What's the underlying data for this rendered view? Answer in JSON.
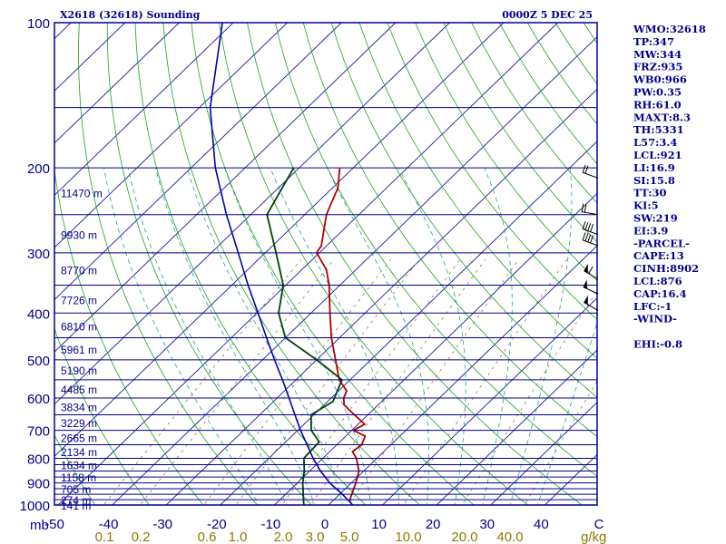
{
  "header": {
    "title": "X2618 (32618) Sounding",
    "time": "0000Z  5 DEC 25"
  },
  "colors": {
    "frame": "#00008b",
    "isobar": "#00008b",
    "isotherm": "#1a1aa0",
    "dry_adiabat": "#1fa01f",
    "moist_adiabat": "#22a0a0",
    "mixing_ratio": "#8a7a4a",
    "temperature": "#b00000",
    "dewpoint": "#004400",
    "parcel": "#0000aa",
    "text": "#00008b",
    "mixing_label": "#8a7a00",
    "wind": "#000000"
  },
  "chart_data": {
    "type": "skew-t",
    "pressure_axis": {
      "unit": "mb",
      "scale": "log",
      "range": [
        1000,
        100
      ],
      "ticks": [
        1000,
        900,
        800,
        700,
        600,
        500,
        400,
        300,
        200,
        100
      ]
    },
    "temperature_axis": {
      "unit": "C",
      "range": [
        -50,
        50
      ],
      "ticks": [
        -50,
        -40,
        -30,
        -20,
        -10,
        0,
        10,
        20,
        30,
        40
      ],
      "tick_labels": [
        "-50",
        "-40",
        "-30",
        "-20",
        "-10",
        "0",
        "10",
        "20",
        "30",
        "40"
      ],
      "unit_label": "C"
    },
    "mixing_ratio_axis": {
      "unit": "g/kg",
      "values": [
        0.1,
        0.2,
        0.6,
        1.0,
        2.0,
        3.0,
        5.0,
        10.0,
        20.0,
        40.0
      ],
      "labels": [
        "0.1",
        "0.2",
        "0.6",
        "1.0",
        "2.0",
        "3.0",
        "5.0",
        "10.0",
        "20.0",
        "40.0"
      ]
    },
    "isobars": [
      1000,
      975,
      950,
      925,
      900,
      875,
      850,
      825,
      800,
      750,
      700,
      650,
      600,
      550,
      500,
      450,
      400,
      350,
      300,
      250,
      200,
      150,
      100
    ],
    "heights": [
      {
        "p": 1000,
        "label": "141 m"
      },
      {
        "p": 975,
        "label": "274 m"
      },
      {
        "p": 925,
        "label": "705 m"
      },
      {
        "p": 875,
        "label": "1158 m"
      },
      {
        "p": 825,
        "label": "1634 m"
      },
      {
        "p": 775,
        "label": "2134 m"
      },
      {
        "p": 725,
        "label": "2665 m"
      },
      {
        "p": 675,
        "label": "3229 m"
      },
      {
        "p": 625,
        "label": "3834 m"
      },
      {
        "p": 575,
        "label": "4485 m"
      },
      {
        "p": 525,
        "label": "5190 m"
      },
      {
        "p": 475,
        "label": "5961 m"
      },
      {
        "p": 425,
        "label": "6810 m"
      },
      {
        "p": 375,
        "label": "7726 m"
      },
      {
        "p": 325,
        "label": "8770 m"
      },
      {
        "p": 275,
        "label": "9930 m"
      },
      {
        "p": 225,
        "label": "11470 m"
      }
    ],
    "temperature": [
      {
        "p": 980,
        "t": 3.2
      },
      {
        "p": 970,
        "t": 2.8
      },
      {
        "p": 900,
        "t": 0.8
      },
      {
        "p": 850,
        "t": -0.9
      },
      {
        "p": 800,
        "t": -3.8
      },
      {
        "p": 775,
        "t": -5.8
      },
      {
        "p": 750,
        "t": -5.4
      },
      {
        "p": 720,
        "t": -6.4
      },
      {
        "p": 700,
        "t": -9.7
      },
      {
        "p": 680,
        "t": -8.8
      },
      {
        "p": 650,
        "t": -12.5
      },
      {
        "p": 620,
        "t": -16.3
      },
      {
        "p": 600,
        "t": -17.7
      },
      {
        "p": 580,
        "t": -18.5
      },
      {
        "p": 550,
        "t": -22.0
      },
      {
        "p": 500,
        "t": -26.5
      },
      {
        "p": 450,
        "t": -31.5
      },
      {
        "p": 400,
        "t": -36.5
      },
      {
        "p": 350,
        "t": -42.0
      },
      {
        "p": 325,
        "t": -45.5
      },
      {
        "p": 300,
        "t": -50.5
      },
      {
        "p": 290,
        "t": -51.0
      },
      {
        "p": 250,
        "t": -56.0
      },
      {
        "p": 220,
        "t": -59.0
      },
      {
        "p": 200,
        "t": -62.5
      }
    ],
    "dewpoint": [
      {
        "p": 1000,
        "t": -4.5
      },
      {
        "p": 990,
        "t": -5.0
      },
      {
        "p": 900,
        "t": -9.0
      },
      {
        "p": 850,
        "t": -11.0
      },
      {
        "p": 800,
        "t": -13.5
      },
      {
        "p": 740,
        "t": -13.8
      },
      {
        "p": 700,
        "t": -17.5
      },
      {
        "p": 650,
        "t": -20.5
      },
      {
        "p": 610,
        "t": -19.0
      },
      {
        "p": 550,
        "t": -21.5
      },
      {
        "p": 500,
        "t": -30.0
      },
      {
        "p": 450,
        "t": -40.0
      },
      {
        "p": 400,
        "t": -46.0
      },
      {
        "p": 350,
        "t": -50.5
      },
      {
        "p": 300,
        "t": -58.0
      },
      {
        "p": 250,
        "t": -67.0
      },
      {
        "p": 200,
        "t": -71.0
      }
    ],
    "parcel": [
      {
        "p": 1000,
        "t": 4.5
      },
      {
        "p": 950,
        "t": 0.5
      },
      {
        "p": 900,
        "t": -4.0
      },
      {
        "p": 850,
        "t": -8.0
      },
      {
        "p": 800,
        "t": -11.8
      },
      {
        "p": 750,
        "t": -15.5
      },
      {
        "p": 700,
        "t": -19.5
      },
      {
        "p": 650,
        "t": -23.5
      },
      {
        "p": 600,
        "t": -27.8
      },
      {
        "p": 550,
        "t": -32.5
      },
      {
        "p": 500,
        "t": -37.8
      },
      {
        "p": 450,
        "t": -43.5
      },
      {
        "p": 400,
        "t": -49.8
      },
      {
        "p": 350,
        "t": -57.0
      },
      {
        "p": 300,
        "t": -65.0
      },
      {
        "p": 250,
        "t": -74.5
      },
      {
        "p": 200,
        "t": -85.5
      },
      {
        "p": 150,
        "t": -98.0
      },
      {
        "p": 100,
        "t": -112.0
      }
    ],
    "wind_barbs": [
      {
        "p": 250,
        "dir": 280,
        "kt": 20
      },
      {
        "p": 210,
        "dir": 290,
        "kt": 20
      },
      {
        "p": 290,
        "dir": 290,
        "kt": 40
      },
      {
        "p": 275,
        "dir": 290,
        "kt": 40
      },
      {
        "p": 340,
        "dir": 300,
        "kt": 65
      },
      {
        "p": 365,
        "dir": 295,
        "kt": 55
      },
      {
        "p": 395,
        "dir": 300,
        "kt": 55
      }
    ]
  },
  "indices": [
    "WMO:32618",
    "TP:347",
    "MW:344",
    "FRZ:935",
    "WB0:966",
    "PW:0.35",
    "RH:61.0",
    "MAXT:8.3",
    "TH:5331",
    "L57:3.4",
    "LCL:921",
    "LI:16.9",
    "SI:15.8",
    "TT:30",
    "KI:5",
    "SW:219",
    "EI:3.9",
    "-PARCEL-",
    "CAPE:13",
    "CINH:8902",
    "LCL:876",
    "CAP:16.4",
    "LFC:-1",
    "-WIND-",
    "",
    "EHI:-0.8"
  ]
}
